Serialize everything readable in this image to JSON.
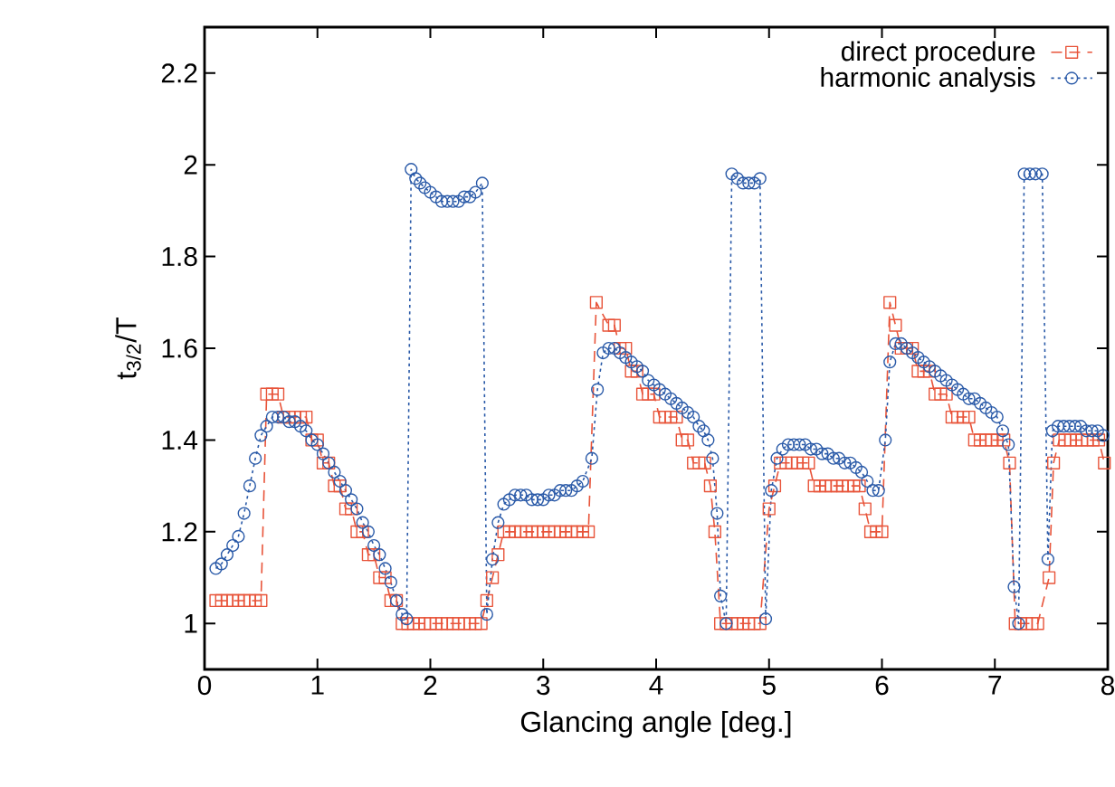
{
  "chart_data": {
    "type": "line",
    "xlabel": "Glancing angle [deg.]",
    "ylabel": "t$_{3/2}$/T",
    "xlim": [
      0,
      8
    ],
    "ylim": [
      0.9,
      2.3
    ],
    "xticks": [
      0,
      1,
      2,
      3,
      4,
      5,
      6,
      7,
      8
    ],
    "yticks": [
      1,
      1.2,
      1.4,
      1.6,
      1.8,
      2,
      2.2
    ],
    "grid": false,
    "legend": "top right",
    "series": [
      {
        "name": "direct procedure",
        "color": "#e8543a",
        "marker": "square",
        "line_style": "dashed",
        "x": [
          0.1,
          0.15,
          0.2,
          0.25,
          0.3,
          0.35,
          0.4,
          0.45,
          0.5,
          0.55,
          0.6,
          0.65,
          0.7,
          0.75,
          0.8,
          0.85,
          0.9,
          0.95,
          1.0,
          1.05,
          1.1,
          1.15,
          1.2,
          1.25,
          1.3,
          1.35,
          1.4,
          1.45,
          1.5,
          1.55,
          1.6,
          1.65,
          1.7,
          1.75,
          1.8,
          1.85,
          1.9,
          1.95,
          2.0,
          2.05,
          2.1,
          2.15,
          2.2,
          2.25,
          2.3,
          2.35,
          2.4,
          2.45,
          2.5,
          2.55,
          2.6,
          2.65,
          2.7,
          2.75,
          2.8,
          2.85,
          2.9,
          2.95,
          3.0,
          3.05,
          3.1,
          3.15,
          3.2,
          3.25,
          3.3,
          3.35,
          3.4,
          3.47,
          3.58,
          3.63,
          3.68,
          3.73,
          3.78,
          3.83,
          3.88,
          3.93,
          3.98,
          4.03,
          4.08,
          4.13,
          4.18,
          4.23,
          4.28,
          4.33,
          4.38,
          4.43,
          4.48,
          4.52,
          4.57,
          4.62,
          4.67,
          4.72,
          4.77,
          4.82,
          4.87,
          4.92,
          5.0,
          5.05,
          5.1,
          5.15,
          5.2,
          5.25,
          5.3,
          5.35,
          5.4,
          5.45,
          5.5,
          5.55,
          5.6,
          5.65,
          5.7,
          5.75,
          5.8,
          5.85,
          5.9,
          5.95,
          6.0,
          6.07,
          6.12,
          6.17,
          6.22,
          6.27,
          6.32,
          6.37,
          6.42,
          6.47,
          6.52,
          6.57,
          6.62,
          6.67,
          6.72,
          6.77,
          6.82,
          6.87,
          6.92,
          6.97,
          7.02,
          7.08,
          7.13,
          7.18,
          7.23,
          7.28,
          7.33,
          7.38,
          7.48,
          7.52,
          7.57,
          7.62,
          7.67,
          7.72,
          7.77,
          7.82,
          7.87,
          7.92,
          7.97
        ],
        "values": [
          1.05,
          1.05,
          1.05,
          1.05,
          1.05,
          1.05,
          1.05,
          1.05,
          1.05,
          1.5,
          1.5,
          1.5,
          1.45,
          1.45,
          1.45,
          1.45,
          1.45,
          1.4,
          1.4,
          1.35,
          1.35,
          1.3,
          1.3,
          1.25,
          1.25,
          1.2,
          1.2,
          1.15,
          1.15,
          1.1,
          1.1,
          1.05,
          1.05,
          1.0,
          1.0,
          1.0,
          1.0,
          1.0,
          1.0,
          1.0,
          1.0,
          1.0,
          1.0,
          1.0,
          1.0,
          1.0,
          1.0,
          1.0,
          1.05,
          1.1,
          1.15,
          1.2,
          1.2,
          1.2,
          1.2,
          1.2,
          1.2,
          1.2,
          1.2,
          1.2,
          1.2,
          1.2,
          1.2,
          1.2,
          1.2,
          1.2,
          1.2,
          1.7,
          1.65,
          1.65,
          1.6,
          1.6,
          1.55,
          1.55,
          1.5,
          1.5,
          1.5,
          1.45,
          1.45,
          1.45,
          1.45,
          1.4,
          1.4,
          1.35,
          1.35,
          1.35,
          1.3,
          1.2,
          1.0,
          1.0,
          1.0,
          1.0,
          1.0,
          1.0,
          1.0,
          1.0,
          1.25,
          1.3,
          1.35,
          1.35,
          1.35,
          1.35,
          1.35,
          1.35,
          1.3,
          1.3,
          1.3,
          1.3,
          1.3,
          1.3,
          1.3,
          1.3,
          1.3,
          1.25,
          1.2,
          1.2,
          1.2,
          1.7,
          1.65,
          1.6,
          1.6,
          1.6,
          1.55,
          1.55,
          1.55,
          1.5,
          1.5,
          1.5,
          1.45,
          1.45,
          1.45,
          1.45,
          1.4,
          1.4,
          1.4,
          1.4,
          1.4,
          1.4,
          1.35,
          1.0,
          1.0,
          1.0,
          1.0,
          1.0,
          1.1,
          1.35,
          1.4,
          1.4,
          1.4,
          1.4,
          1.4,
          1.4,
          1.4,
          1.4,
          1.35
        ]
      },
      {
        "name": "harmonic analysis",
        "color": "#2a5aa8",
        "marker": "circle",
        "line_style": "dotted",
        "x": [
          0.1,
          0.15,
          0.2,
          0.25,
          0.3,
          0.35,
          0.4,
          0.45,
          0.5,
          0.55,
          0.6,
          0.65,
          0.7,
          0.75,
          0.8,
          0.85,
          0.9,
          0.95,
          1.0,
          1.05,
          1.1,
          1.15,
          1.2,
          1.25,
          1.3,
          1.35,
          1.4,
          1.45,
          1.5,
          1.55,
          1.6,
          1.65,
          1.7,
          1.75,
          1.79,
          1.83,
          1.87,
          1.91,
          1.95,
          2.0,
          2.05,
          2.1,
          2.15,
          2.2,
          2.25,
          2.3,
          2.35,
          2.4,
          2.46,
          2.5,
          2.55,
          2.6,
          2.65,
          2.7,
          2.75,
          2.8,
          2.85,
          2.9,
          2.95,
          3.0,
          3.05,
          3.1,
          3.15,
          3.2,
          3.25,
          3.3,
          3.35,
          3.43,
          3.48,
          3.53,
          3.58,
          3.63,
          3.68,
          3.73,
          3.78,
          3.83,
          3.88,
          3.93,
          3.98,
          4.03,
          4.08,
          4.13,
          4.18,
          4.23,
          4.28,
          4.33,
          4.38,
          4.42,
          4.46,
          4.5,
          4.54,
          4.57,
          4.62,
          4.67,
          4.72,
          4.77,
          4.82,
          4.87,
          4.92,
          4.97,
          5.02,
          5.07,
          5.12,
          5.17,
          5.22,
          5.27,
          5.32,
          5.37,
          5.42,
          5.47,
          5.52,
          5.57,
          5.62,
          5.67,
          5.72,
          5.77,
          5.82,
          5.87,
          5.92,
          5.97,
          6.03,
          6.07,
          6.12,
          6.17,
          6.22,
          6.27,
          6.32,
          6.37,
          6.42,
          6.47,
          6.52,
          6.57,
          6.62,
          6.67,
          6.72,
          6.77,
          6.82,
          6.87,
          6.92,
          6.97,
          7.02,
          7.07,
          7.12,
          7.17,
          7.21,
          7.26,
          7.31,
          7.36,
          7.42,
          7.47,
          7.51,
          7.56,
          7.61,
          7.66,
          7.71,
          7.76,
          7.81,
          7.86,
          7.91,
          7.96
        ],
        "values": [
          1.12,
          1.13,
          1.15,
          1.17,
          1.19,
          1.24,
          1.3,
          1.36,
          1.41,
          1.43,
          1.45,
          1.45,
          1.45,
          1.44,
          1.44,
          1.43,
          1.42,
          1.4,
          1.39,
          1.37,
          1.35,
          1.33,
          1.31,
          1.29,
          1.27,
          1.25,
          1.22,
          1.2,
          1.17,
          1.15,
          1.12,
          1.09,
          1.05,
          1.02,
          1.01,
          1.99,
          1.97,
          1.96,
          1.95,
          1.94,
          1.93,
          1.92,
          1.92,
          1.92,
          1.92,
          1.93,
          1.93,
          1.94,
          1.96,
          1.02,
          1.14,
          1.22,
          1.26,
          1.27,
          1.28,
          1.28,
          1.28,
          1.27,
          1.27,
          1.27,
          1.28,
          1.28,
          1.29,
          1.29,
          1.29,
          1.3,
          1.31,
          1.36,
          1.51,
          1.59,
          1.6,
          1.6,
          1.59,
          1.58,
          1.57,
          1.56,
          1.55,
          1.53,
          1.52,
          1.51,
          1.5,
          1.49,
          1.48,
          1.47,
          1.46,
          1.45,
          1.43,
          1.42,
          1.4,
          1.36,
          1.24,
          1.06,
          1.0,
          1.98,
          1.97,
          1.96,
          1.96,
          1.96,
          1.97,
          1.01,
          1.29,
          1.36,
          1.38,
          1.39,
          1.39,
          1.39,
          1.39,
          1.38,
          1.38,
          1.37,
          1.37,
          1.36,
          1.36,
          1.35,
          1.35,
          1.34,
          1.33,
          1.31,
          1.29,
          1.29,
          1.4,
          1.57,
          1.61,
          1.61,
          1.6,
          1.59,
          1.58,
          1.57,
          1.56,
          1.55,
          1.54,
          1.53,
          1.52,
          1.51,
          1.5,
          1.49,
          1.49,
          1.48,
          1.47,
          1.46,
          1.45,
          1.42,
          1.39,
          1.08,
          1.0,
          1.98,
          1.98,
          1.98,
          1.98,
          1.14,
          1.42,
          1.43,
          1.43,
          1.43,
          1.43,
          1.43,
          1.42,
          1.42,
          1.42,
          1.41
        ]
      }
    ]
  }
}
